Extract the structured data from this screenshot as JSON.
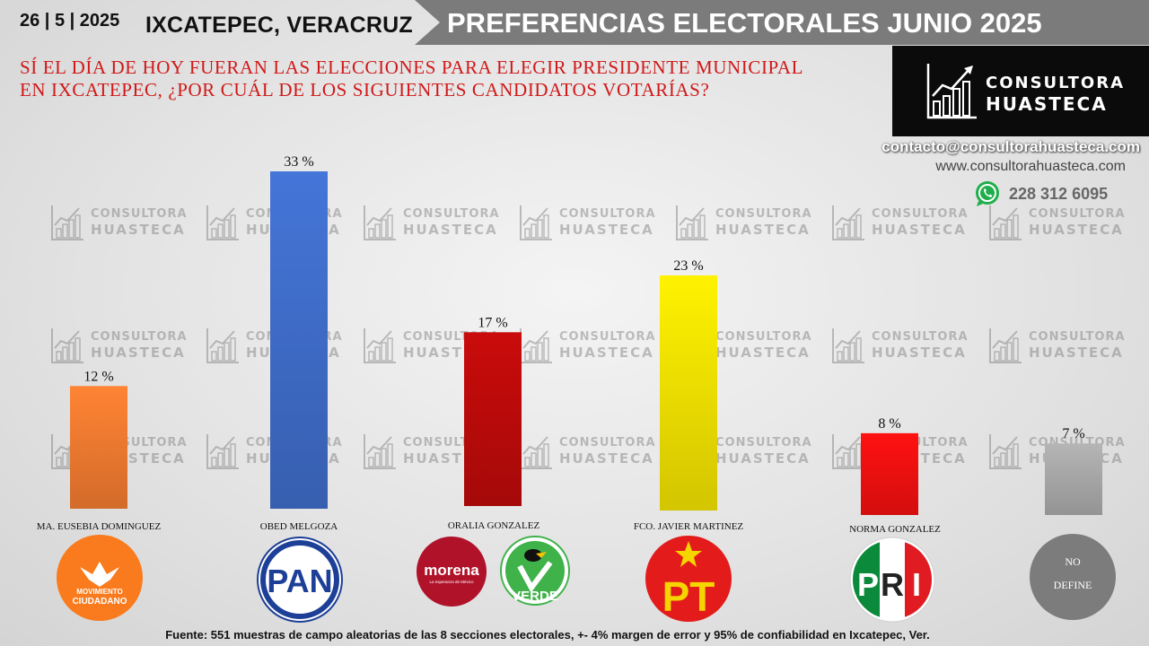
{
  "header": {
    "date": "26 | 5 | 2025",
    "location": "IXCATEPEC, VERACRUZ",
    "banner_title": "PREFERENCIAS ELECTORALES JUNIO 2025"
  },
  "question": {
    "line1": "SÍ EL DÍA DE HOY FUERAN LAS ELECCIONES PARA ELEGIR PRESIDENTE MUNICIPAL",
    "line2": "EN IXCATEPEC,  ¿POR CUÁL DE LOS SIGUIENTES CANDIDATOS VOTARÍAS?"
  },
  "brand": {
    "line1": "CONSULTORA",
    "line2": "HUASTECA",
    "email": "contacto@consultorahuasteca.com",
    "website": "www.consultorahuasteca.com",
    "phone": "228 312 6095",
    "watermark_line1": "CONSULTORA",
    "watermark_line2": "HUASTECA"
  },
  "chart_data": {
    "type": "bar",
    "categories": [
      "MA. EUSEBIA DOMINGUEZ",
      "OBED MELGOZA",
      "ORALIA GONZALEZ",
      "FCO. JAVIER MARTINEZ",
      "NORMA GONZALEZ",
      "NO DEFINE"
    ],
    "values": [
      12,
      33,
      17,
      23,
      8,
      7
    ],
    "value_labels": [
      "12 %",
      "33 %",
      "17 %",
      "23 %",
      "8 %",
      "7 %"
    ],
    "colors": [
      "#f07a30",
      "#3f6cc8",
      "#bb0a0a",
      "#f0e000",
      "#f01010",
      "#a8a8a8"
    ],
    "unit": "%"
  },
  "parties": {
    "mc": {
      "line1": "MOVIMIENTO",
      "line2": "CIUDADANO",
      "color": "#f97b1d"
    },
    "pan": {
      "text": "PAN",
      "color": "#1d3f97"
    },
    "morena": {
      "text": "morena",
      "subtext": "La esperanza de México",
      "color": "#b0122a"
    },
    "verde": {
      "text": "VERDE",
      "color": "#3fb24a"
    },
    "pt": {
      "text": "PT",
      "color": "#e31b1b",
      "accent": "#f5d500"
    },
    "pri": {
      "p": "P",
      "r": "R",
      "i": "I",
      "colors": [
        "#0a8a3a",
        "#ffffff",
        "#e01b22"
      ]
    },
    "no_define": {
      "line1": "NO",
      "line2": "DEFINE"
    }
  },
  "footer": {
    "source": "Fuente:  551 muestras de campo aleatorias de las  8 secciones electorales, +- 4% margen de error y 95% de confiabilidad en Ixcatepec, Ver."
  }
}
